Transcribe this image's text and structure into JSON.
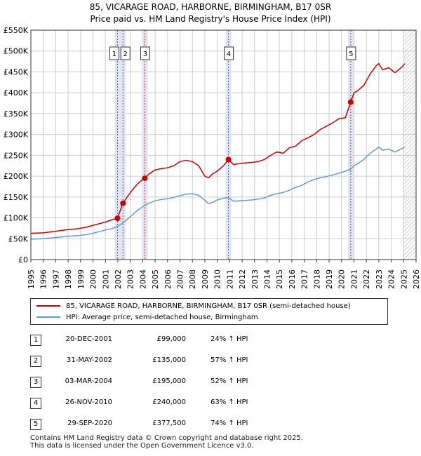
{
  "title": {
    "line1": "85, VICARAGE ROAD, HARBORNE, BIRMINGHAM, B17 0SR",
    "line2": "Price paid vs. HM Land Registry's House Price Index (HPI)"
  },
  "colors": {
    "price_line": "#cc0000",
    "hpi_line": "#6699cc",
    "vline": "#cc0000",
    "band": "#dde6f5",
    "grid": "#cccccc",
    "hatch": "#999999"
  },
  "chart_data": {
    "type": "line",
    "title": "85, VICARAGE ROAD, HARBORNE, BIRMINGHAM, B17 0SR — Price paid vs. HM Land Registry's House Price Index (HPI)",
    "xlabel": "",
    "ylabel": "",
    "xlim": [
      1995,
      2026
    ],
    "ylim": [
      0,
      550000
    ],
    "x_ticks": [
      "1995",
      "1996",
      "1997",
      "1998",
      "1999",
      "2000",
      "2001",
      "2002",
      "2003",
      "2004",
      "2005",
      "2006",
      "2007",
      "2008",
      "2009",
      "2010",
      "2011",
      "2012",
      "2013",
      "2014",
      "2015",
      "2016",
      "2017",
      "2018",
      "2019",
      "2020",
      "2021",
      "2022",
      "2023",
      "2024",
      "2025",
      "2026"
    ],
    "y_ticks": [
      {
        "value": 0,
        "label": "£0"
      },
      {
        "value": 50000,
        "label": "£50K"
      },
      {
        "value": 100000,
        "label": "£100K"
      },
      {
        "value": 150000,
        "label": "£150K"
      },
      {
        "value": 200000,
        "label": "£200K"
      },
      {
        "value": 250000,
        "label": "£250K"
      },
      {
        "value": 300000,
        "label": "£300K"
      },
      {
        "value": 350000,
        "label": "£350K"
      },
      {
        "value": 400000,
        "label": "£400K"
      },
      {
        "value": 450000,
        "label": "£450K"
      },
      {
        "value": 500000,
        "label": "£500K"
      },
      {
        "value": 550000,
        "label": "£550K"
      }
    ],
    "grid": true,
    "shaded_bands": [
      {
        "from": 2001.97,
        "to": 2002.41
      },
      {
        "from": 2004.17,
        "to": 2004.17
      },
      {
        "from": 2010.9,
        "to": 2010.9
      },
      {
        "from": 2020.74,
        "to": 2020.74
      }
    ],
    "series": [
      {
        "name": "85, VICARAGE ROAD, HARBORNE, BIRMINGHAM, B17 0SR (semi-detached house)",
        "color": "#cc0000",
        "x": [
          1995.0,
          1995.5,
          1996.0,
          1996.5,
          1997.0,
          1997.5,
          1998.0,
          1998.5,
          1999.0,
          1999.5,
          2000.0,
          2000.5,
          2001.0,
          2001.5,
          2001.97,
          2002.2,
          2002.41,
          2002.8,
          2003.2,
          2003.6,
          2004.0,
          2004.17,
          2004.5,
          2005.0,
          2005.5,
          2006.0,
          2006.5,
          2007.0,
          2007.5,
          2008.0,
          2008.5,
          2009.0,
          2009.3,
          2009.6,
          2010.0,
          2010.5,
          2010.9,
          2011.3,
          2011.8,
          2012.3,
          2012.8,
          2013.3,
          2013.8,
          2014.3,
          2014.8,
          2015.3,
          2015.8,
          2016.3,
          2016.8,
          2017.3,
          2017.8,
          2018.3,
          2018.8,
          2019.3,
          2019.8,
          2020.3,
          2020.74,
          2021.0,
          2021.3,
          2021.8,
          2022.3,
          2022.8,
          2023.0,
          2023.3,
          2023.8,
          2024.3,
          2024.8,
          2025.1
        ],
        "y": [
          63000,
          63500,
          64000,
          66000,
          68000,
          70000,
          72000,
          73000,
          75000,
          78000,
          82000,
          86000,
          90000,
          95000,
          99000,
          118000,
          135000,
          152000,
          168000,
          182000,
          192000,
          195000,
          205000,
          215000,
          218000,
          220000,
          225000,
          235000,
          238000,
          235000,
          225000,
          200000,
          196000,
          205000,
          212000,
          225000,
          240000,
          228000,
          230000,
          232000,
          233000,
          235000,
          240000,
          250000,
          258000,
          255000,
          268000,
          272000,
          285000,
          292000,
          300000,
          312000,
          320000,
          328000,
          338000,
          340000,
          377500,
          400000,
          405000,
          418000,
          445000,
          465000,
          470000,
          455000,
          460000,
          448000,
          460000,
          470000
        ]
      },
      {
        "name": "HPI: Average price, semi-detached house, Birmingham",
        "color": "#6699cc",
        "x": [
          1995.0,
          1995.5,
          1996.0,
          1996.5,
          1997.0,
          1997.5,
          1998.0,
          1998.5,
          1999.0,
          1999.5,
          2000.0,
          2000.5,
          2001.0,
          2001.5,
          2002.0,
          2002.5,
          2003.0,
          2003.5,
          2004.0,
          2004.5,
          2005.0,
          2005.5,
          2006.0,
          2006.5,
          2007.0,
          2007.5,
          2008.0,
          2008.5,
          2009.0,
          2009.3,
          2009.6,
          2010.0,
          2010.5,
          2010.9,
          2011.3,
          2011.8,
          2012.3,
          2012.8,
          2013.3,
          2013.8,
          2014.3,
          2014.8,
          2015.3,
          2015.8,
          2016.3,
          2016.8,
          2017.3,
          2017.8,
          2018.3,
          2018.8,
          2019.3,
          2019.8,
          2020.3,
          2020.74,
          2021.0,
          2021.3,
          2021.8,
          2022.3,
          2022.8,
          2023.0,
          2023.3,
          2023.8,
          2024.3,
          2024.8,
          2025.1
        ],
        "y": [
          49000,
          49500,
          50000,
          51500,
          53000,
          54500,
          56000,
          57000,
          58000,
          60000,
          63000,
          67000,
          71000,
          74000,
          80000,
          90000,
          103000,
          116000,
          127000,
          135000,
          141000,
          144000,
          146000,
          149000,
          153000,
          157000,
          158000,
          154000,
          142000,
          134000,
          137000,
          143000,
          147000,
          149000,
          140000,
          141000,
          142000,
          143000,
          145000,
          148000,
          154000,
          158000,
          161000,
          166000,
          173000,
          178000,
          186000,
          192000,
          196000,
          199000,
          203000,
          207000,
          212000,
          217000,
          225000,
          230000,
          240000,
          255000,
          265000,
          270000,
          262000,
          265000,
          258000,
          265000,
          270000
        ]
      }
    ],
    "annotations": [
      {
        "label": "1",
        "x": 2001.97,
        "y": 99000
      },
      {
        "label": "2",
        "x": 2002.41,
        "y": 135000
      },
      {
        "label": "3",
        "x": 2004.17,
        "y": 195000
      },
      {
        "label": "4",
        "x": 2010.9,
        "y": 240000
      },
      {
        "label": "5",
        "x": 2020.74,
        "y": 377500
      }
    ],
    "forecast_from": 2025.0
  },
  "legend": {
    "price_label": "85, VICARAGE ROAD, HARBORNE, BIRMINGHAM, B17 0SR (semi-detached house)",
    "hpi_label": "HPI: Average price, semi-detached house, Birmingham"
  },
  "sales": [
    {
      "num": "1",
      "date": "20-DEC-2001",
      "price": "£99,000",
      "hpi": "24% ↑ HPI"
    },
    {
      "num": "2",
      "date": "31-MAY-2002",
      "price": "£135,000",
      "hpi": "57% ↑ HPI"
    },
    {
      "num": "3",
      "date": "03-MAR-2004",
      "price": "£195,000",
      "hpi": "52% ↑ HPI"
    },
    {
      "num": "4",
      "date": "26-NOV-2010",
      "price": "£240,000",
      "hpi": "63% ↑ HPI"
    },
    {
      "num": "5",
      "date": "29-SEP-2020",
      "price": "£377,500",
      "hpi": "74% ↑ HPI"
    }
  ],
  "footer": {
    "line1": "Contains HM Land Registry data © Crown copyright and database right 2025.",
    "line2": "This data is licensed under the Open Government Licence v3.0."
  }
}
